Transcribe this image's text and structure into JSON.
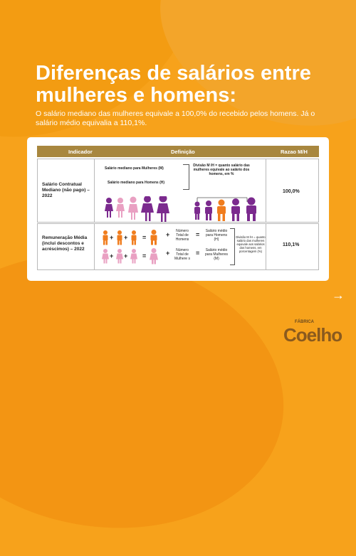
{
  "title": "Diferenças de salários entre mulheres e homens:",
  "subtitle": "O salário mediano das mulheres equivale a 100,0% do recebido pelos homens. Já o salário médio equivalia a 110,1%.",
  "colors": {
    "background": "#f7a21b",
    "header": "#a8873f",
    "purple": "#7b2a8e",
    "pink": "#e9a0c2",
    "orange": "#f07d1e"
  },
  "table": {
    "headers": [
      "Indicador",
      "Definição",
      "Razao M/H"
    ],
    "rows": [
      {
        "indicator": "Salário Contratual Mediano (não pago) – 2022",
        "ratio": "100,0%",
        "line_women": "Salário mediano para Mulheres (M)",
        "line_men": "Salário mediano para Homens (H)",
        "division": "Divisão M /H = quanto salário das mulheres equivale ao salário dos homens, em %"
      },
      {
        "indicator": "Remuneração Média (inclui descontos e acréscimos) – 2022",
        "ratio": "110,1%",
        "total_men": "Número Total de Homens",
        "total_women": "Número Total de Mulhere s",
        "avg_men": "Salário médio para Homens (H)",
        "avg_women": "Salário médio para Mulheres (M)",
        "division": "Divisão M /H = quanto salário das mulheres equivale aos salários dos homens, em porcentagem (%)"
      }
    ]
  },
  "nav": {
    "next_icon": "→"
  },
  "brand": {
    "small": "FÁBRICA",
    "big": "Coelho"
  }
}
